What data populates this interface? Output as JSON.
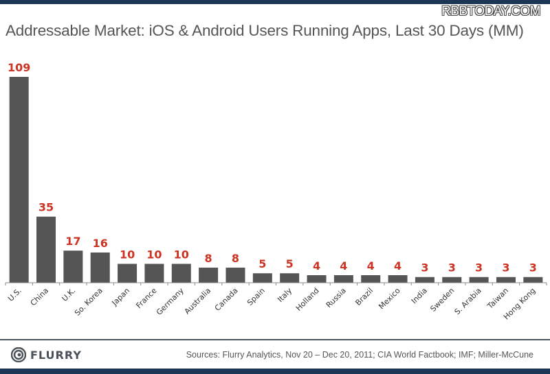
{
  "watermark": "RBBTODAY.COM",
  "footer": {
    "logo_text": "FLURRY",
    "sources": "Sources: Flurry Analytics, Nov 20 – Dec 20, 2011; CIA World Factbook; IMF; Miller-McCune"
  },
  "colors": {
    "bar": "#555555",
    "label": "#cc3322",
    "frame": "#1d3557"
  },
  "chart_data": {
    "type": "bar",
    "title": "Addressable Market: iOS & Android Users Running Apps, Last 30 Days (MM)",
    "xlabel": "",
    "ylabel": "",
    "ylim": [
      0,
      109
    ],
    "grid": false,
    "categories": [
      "U.S.",
      "China",
      "U.K.",
      "So. Korea",
      "Japan",
      "France",
      "Germany",
      "Australia",
      "Canada",
      "Spain",
      "Italy",
      "Holland",
      "Russia",
      "Brazil",
      "Mexico",
      "India",
      "Sweden",
      "S. Arabia",
      "Taiwan",
      "Hong Kong"
    ],
    "values": [
      109,
      35,
      17,
      16,
      10,
      10,
      10,
      8,
      8,
      5,
      5,
      4,
      4,
      4,
      4,
      3,
      3,
      3,
      3,
      3
    ]
  }
}
